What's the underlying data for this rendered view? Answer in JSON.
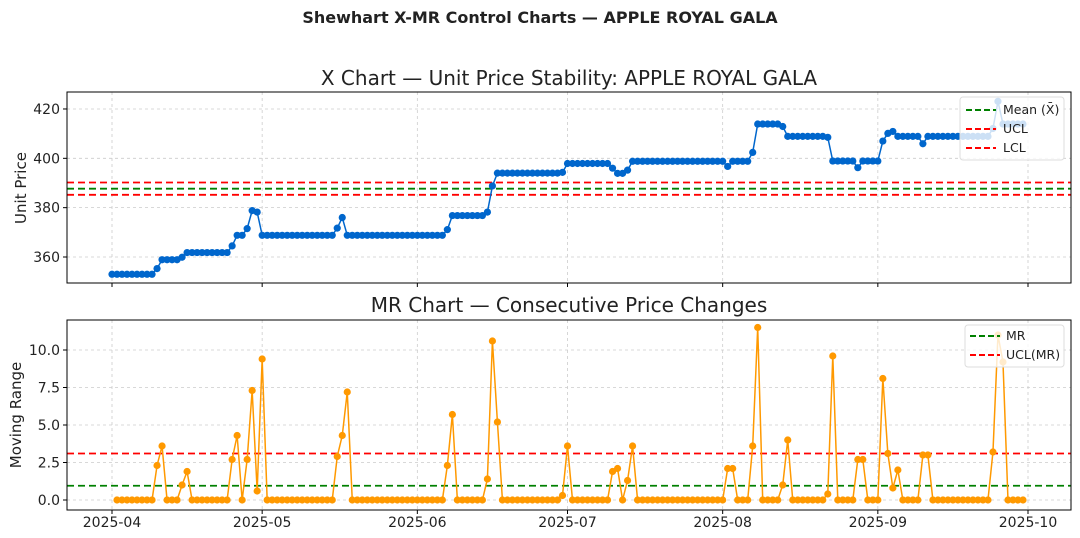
{
  "suptitle": "Shewhart X-MR Control Charts — APPLE ROYAL GALA",
  "colors": {
    "x_series": "#0066cc",
    "mr_series": "#ff9900",
    "mean_line": "#008000",
    "limit_line": "#ff0000"
  },
  "chart_data": [
    {
      "type": "line",
      "title": "X Chart — Unit Price Stability: APPLE ROYAL GALA",
      "xlabel": "",
      "ylabel": "Unit Price",
      "ylim": [
        350,
        426
      ],
      "yticks": [
        "360",
        "380",
        "400",
        "420"
      ],
      "xticks": [
        "2025-04",
        "2025-05",
        "2025-06",
        "2025-07",
        "2025-08",
        "2025-09",
        "2025-10"
      ],
      "grid": true,
      "legend_position": "top-right",
      "legend": [
        "Mean (X̄)",
        "UCL",
        "LCL"
      ],
      "mean": 387.7,
      "ucl": 390.2,
      "lcl": 385.2,
      "x": [
        "2025-04-01",
        "2025-04-02",
        "2025-04-03",
        "2025-04-04",
        "2025-04-05",
        "2025-04-06",
        "2025-04-07",
        "2025-04-08",
        "2025-04-09",
        "2025-04-10",
        "2025-04-11",
        "2025-04-12",
        "2025-04-13",
        "2025-04-14",
        "2025-04-15",
        "2025-04-16",
        "2025-04-17",
        "2025-04-18",
        "2025-04-19",
        "2025-04-20",
        "2025-04-21",
        "2025-04-22",
        "2025-04-23",
        "2025-04-24",
        "2025-04-25",
        "2025-04-26",
        "2025-04-27",
        "2025-04-28",
        "2025-04-29",
        "2025-04-30",
        "2025-05-01",
        "2025-05-02",
        "2025-05-03",
        "2025-05-04",
        "2025-05-05",
        "2025-05-06",
        "2025-05-07",
        "2025-05-08",
        "2025-05-09",
        "2025-05-10",
        "2025-05-11",
        "2025-05-12",
        "2025-05-13",
        "2025-05-14",
        "2025-05-15",
        "2025-05-16",
        "2025-05-17",
        "2025-05-18",
        "2025-05-19",
        "2025-05-20",
        "2025-05-21",
        "2025-05-22",
        "2025-05-23",
        "2025-05-24",
        "2025-05-25",
        "2025-05-26",
        "2025-05-27",
        "2025-05-28",
        "2025-05-29",
        "2025-05-30",
        "2025-05-31",
        "2025-06-01",
        "2025-06-02",
        "2025-06-03",
        "2025-06-04",
        "2025-06-05",
        "2025-06-06",
        "2025-06-07",
        "2025-06-08",
        "2025-06-09",
        "2025-06-10",
        "2025-06-11",
        "2025-06-12",
        "2025-06-13",
        "2025-06-14",
        "2025-06-15",
        "2025-06-16",
        "2025-06-17",
        "2025-06-18",
        "2025-06-19",
        "2025-06-20",
        "2025-06-21",
        "2025-06-22",
        "2025-06-23",
        "2025-06-24",
        "2025-06-25",
        "2025-06-26",
        "2025-06-27",
        "2025-06-28",
        "2025-06-29",
        "2025-06-30",
        "2025-07-01",
        "2025-07-02",
        "2025-07-03",
        "2025-07-04",
        "2025-07-05",
        "2025-07-06",
        "2025-07-07",
        "2025-07-08",
        "2025-07-09",
        "2025-07-10",
        "2025-07-11",
        "2025-07-12",
        "2025-07-13",
        "2025-07-14",
        "2025-07-15",
        "2025-07-16",
        "2025-07-17",
        "2025-07-18",
        "2025-07-19",
        "2025-07-20",
        "2025-07-21",
        "2025-07-22",
        "2025-07-23",
        "2025-07-24",
        "2025-07-25",
        "2025-07-26",
        "2025-07-27",
        "2025-07-28",
        "2025-07-29",
        "2025-07-30",
        "2025-07-31",
        "2025-08-01",
        "2025-08-02",
        "2025-08-03",
        "2025-08-04",
        "2025-08-05",
        "2025-08-06",
        "2025-08-07",
        "2025-08-08",
        "2025-08-09",
        "2025-08-10",
        "2025-08-11",
        "2025-08-12",
        "2025-08-13",
        "2025-08-14",
        "2025-08-15",
        "2025-08-16",
        "2025-08-17",
        "2025-08-18",
        "2025-08-19",
        "2025-08-20",
        "2025-08-21",
        "2025-08-22",
        "2025-08-23",
        "2025-08-24",
        "2025-08-25",
        "2025-08-26",
        "2025-08-27",
        "2025-08-28",
        "2025-08-29",
        "2025-08-30",
        "2025-08-31",
        "2025-09-01",
        "2025-09-02",
        "2025-09-03",
        "2025-09-04",
        "2025-09-05",
        "2025-09-06",
        "2025-09-07",
        "2025-09-08",
        "2025-09-09",
        "2025-09-10",
        "2025-09-11",
        "2025-09-12",
        "2025-09-13",
        "2025-09-14",
        "2025-09-15",
        "2025-09-16",
        "2025-09-17",
        "2025-09-18",
        "2025-09-19",
        "2025-09-20",
        "2025-09-21",
        "2025-09-22",
        "2025-09-23",
        "2025-09-24",
        "2025-09-25",
        "2025-09-26",
        "2025-09-27",
        "2025-09-28",
        "2025-09-29",
        "2025-09-30"
      ],
      "y": [
        353,
        353,
        353,
        353,
        353,
        353,
        353,
        353,
        353,
        355.3,
        358.9,
        358.9,
        358.9,
        358.9,
        359.9,
        361.8,
        361.8,
        361.8,
        361.8,
        361.8,
        361.8,
        361.8,
        361.8,
        361.8,
        364.5,
        368.8,
        368.8,
        371.5,
        378.8,
        378.2,
        368.8,
        368.8,
        368.8,
        368.8,
        368.8,
        368.8,
        368.8,
        368.8,
        368.8,
        368.8,
        368.8,
        368.8,
        368.8,
        368.8,
        368.8,
        371.7,
        376.0,
        368.8,
        368.8,
        368.8,
        368.8,
        368.8,
        368.8,
        368.8,
        368.8,
        368.8,
        368.8,
        368.8,
        368.8,
        368.8,
        368.8,
        368.8,
        368.8,
        368.8,
        368.8,
        368.8,
        368.8,
        371.1,
        376.8,
        376.8,
        376.8,
        376.8,
        376.8,
        376.8,
        376.8,
        378.2,
        388.8,
        394.0,
        394.0,
        394.0,
        394.0,
        394.0,
        394.0,
        394.0,
        394.0,
        394.0,
        394.0,
        394.0,
        394.0,
        394.0,
        394.3,
        397.9,
        397.9,
        397.9,
        397.9,
        397.9,
        397.9,
        397.9,
        397.9,
        397.9,
        396.0,
        393.9,
        393.9,
        395.2,
        398.8,
        398.8,
        398.8,
        398.8,
        398.8,
        398.8,
        398.8,
        398.8,
        398.8,
        398.8,
        398.8,
        398.8,
        398.8,
        398.8,
        398.8,
        398.8,
        398.8,
        398.8,
        398.8,
        396.7,
        398.8,
        398.8,
        398.8,
        398.8,
        402.4,
        413.9,
        413.9,
        413.9,
        413.9,
        413.9,
        412.9,
        408.9,
        408.9,
        408.9,
        408.9,
        408.9,
        408.9,
        408.9,
        408.9,
        408.5,
        398.9,
        398.9,
        398.9,
        398.9,
        398.9,
        396.2,
        398.9,
        398.9,
        398.9,
        398.9,
        407.0,
        410.1,
        410.9,
        408.9,
        408.9,
        408.9,
        408.9,
        408.9,
        405.9,
        408.9,
        408.9,
        408.9,
        408.9,
        408.9,
        408.9,
        408.9,
        408.9,
        408.9,
        408.9,
        408.9,
        408.9,
        408.9,
        412.1,
        423.1,
        413.9,
        413.9,
        413.9,
        413.9,
        413.9
      ]
    },
    {
      "type": "line",
      "title": "MR Chart — Consecutive Price Changes",
      "xlabel": "",
      "ylabel": "Moving Range",
      "ylim": [
        -0.6,
        12
      ],
      "yticks": [
        "0.0",
        "2.5",
        "5.0",
        "7.5",
        "10.0"
      ],
      "xticks": [
        "2025-04",
        "2025-05",
        "2025-06",
        "2025-07",
        "2025-08",
        "2025-09",
        "2025-10"
      ],
      "grid": true,
      "legend_position": "top-right",
      "legend": [
        "MR",
        "UCL(MR)"
      ],
      "mr_mean": 0.95,
      "ucl_mr": 3.1,
      "x_from": "2025-04-02",
      "y": [
        0,
        0,
        0,
        0,
        0,
        0,
        0,
        0,
        2.3,
        3.6,
        0,
        0,
        0,
        1.0,
        1.9,
        0,
        0,
        0,
        0,
        0,
        0,
        0,
        0,
        2.7,
        4.3,
        0,
        2.7,
        7.3,
        0.6,
        9.4,
        0,
        0,
        0,
        0,
        0,
        0,
        0,
        0,
        0,
        0,
        0,
        0,
        0,
        0,
        2.9,
        4.3,
        7.2,
        0,
        0,
        0,
        0,
        0,
        0,
        0,
        0,
        0,
        0,
        0,
        0,
        0,
        0,
        0,
        0,
        0,
        0,
        0,
        2.3,
        5.7,
        0,
        0,
        0,
        0,
        0,
        0,
        1.4,
        10.6,
        5.2,
        0,
        0,
        0,
        0,
        0,
        0,
        0,
        0,
        0,
        0,
        0,
        0,
        0.3,
        3.6,
        0,
        0,
        0,
        0,
        0,
        0,
        0,
        0,
        1.9,
        2.1,
        0,
        1.3,
        3.6,
        0,
        0,
        0,
        0,
        0,
        0,
        0,
        0,
        0,
        0,
        0,
        0,
        0,
        0,
        0,
        0,
        0,
        0,
        2.1,
        2.1,
        0,
        0,
        0,
        3.6,
        11.5,
        0,
        0,
        0,
        0,
        1.0,
        4.0,
        0,
        0,
        0,
        0,
        0,
        0,
        0,
        0.4,
        9.6,
        0,
        0,
        0,
        0,
        2.7,
        2.7,
        0,
        0,
        0,
        8.1,
        3.1,
        0.8,
        2.0,
        0,
        0,
        0,
        0,
        3.0,
        3.0,
        0,
        0,
        0,
        0,
        0,
        0,
        0,
        0,
        0,
        0,
        0,
        0,
        3.2,
        11.0,
        9.2,
        0,
        0,
        0,
        0
      ]
    }
  ]
}
